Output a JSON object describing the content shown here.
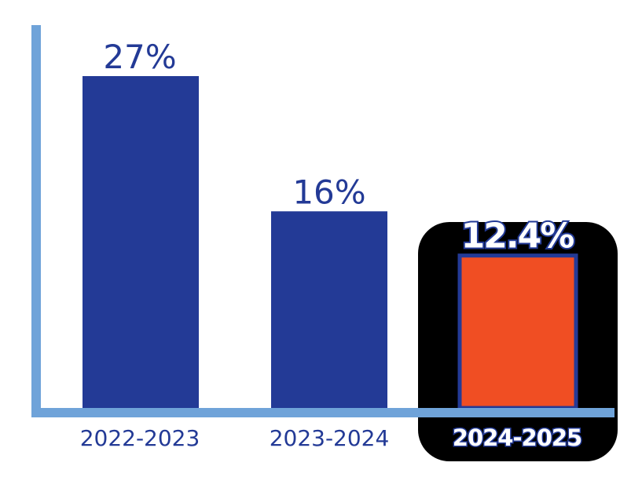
{
  "chart_data": {
    "type": "bar",
    "title": "",
    "xlabel": "",
    "ylabel": "",
    "categories": [
      "2022-2023",
      "2023-2024",
      "2024-2025"
    ],
    "values": [
      27,
      16,
      12.4
    ],
    "value_labels": [
      "27%",
      "16%",
      "12.4%"
    ],
    "ylim": [
      0,
      27
    ],
    "highlight_index": 2,
    "grid": false
  },
  "colors": {
    "bar": "#233a96",
    "highlight_bar": "#f04e23",
    "highlight_backdrop": "#000000",
    "axis": "#6fa3d9",
    "label": "#233a96",
    "highlight_text": "#ffffff"
  }
}
